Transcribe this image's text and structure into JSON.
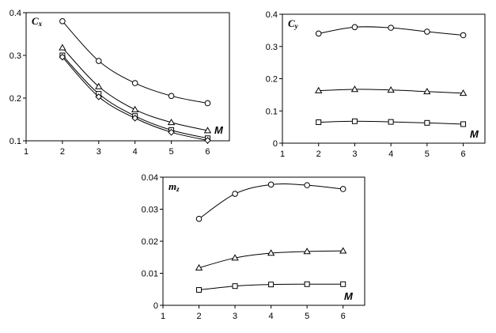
{
  "chart_data": [
    {
      "type": "line",
      "id": "cx",
      "title": "",
      "ylabel": "C_x",
      "xlabel": "M",
      "xlim": [
        1,
        6.6
      ],
      "ylim": [
        0.1,
        0.4
      ],
      "xticks": [
        "1",
        "2",
        "3",
        "4",
        "5",
        "6"
      ],
      "yticks": [
        "0.1",
        "0.2",
        "0.3",
        "0.4"
      ],
      "series": [
        {
          "marker": "circle",
          "x": [
            2,
            3,
            4,
            5,
            6
          ],
          "y": [
            0.38,
            0.287,
            0.235,
            0.205,
            0.188
          ]
        },
        {
          "marker": "triangle",
          "x": [
            2,
            3,
            4,
            5,
            6
          ],
          "y": [
            0.318,
            0.227,
            0.173,
            0.143,
            0.124
          ]
        },
        {
          "marker": "square",
          "x": [
            2,
            3,
            4,
            5,
            6
          ],
          "y": [
            0.3,
            0.21,
            0.158,
            0.125,
            0.106
          ]
        },
        {
          "marker": "diamond",
          "x": [
            2,
            3,
            4,
            5,
            6
          ],
          "y": [
            0.296,
            0.203,
            0.153,
            0.12,
            0.101
          ]
        }
      ]
    },
    {
      "type": "line",
      "id": "cy",
      "title": "",
      "ylabel": "C_y",
      "xlabel": "M",
      "xlim": [
        1,
        6.6
      ],
      "ylim": [
        0,
        0.4
      ],
      "xticks": [
        "1",
        "2",
        "3",
        "4",
        "5",
        "6"
      ],
      "yticks": [
        "0",
        "0.1",
        "0.2",
        "0.3",
        "0.4"
      ],
      "series": [
        {
          "marker": "circle",
          "x": [
            2,
            3,
            4,
            5,
            6
          ],
          "y": [
            0.34,
            0.36,
            0.358,
            0.346,
            0.335
          ]
        },
        {
          "marker": "triangle",
          "x": [
            2,
            3,
            4,
            5,
            6
          ],
          "y": [
            0.163,
            0.167,
            0.165,
            0.16,
            0.155
          ]
        },
        {
          "marker": "square",
          "x": [
            2,
            3,
            4,
            5,
            6
          ],
          "y": [
            0.065,
            0.068,
            0.066,
            0.063,
            0.059
          ]
        }
      ]
    },
    {
      "type": "line",
      "id": "mz",
      "title": "",
      "ylabel": "m_z",
      "xlabel": "M",
      "xlim": [
        1,
        6.6
      ],
      "ylim": [
        0,
        0.04
      ],
      "xticks": [
        "1",
        "2",
        "3",
        "4",
        "5",
        "6"
      ],
      "yticks": [
        "0",
        "0.01",
        "0.02",
        "0.03",
        "0.04"
      ],
      "series": [
        {
          "marker": "circle",
          "x": [
            2,
            3,
            4,
            5,
            6
          ],
          "y": [
            0.027,
            0.0348,
            0.0377,
            0.0375,
            0.0363
          ]
        },
        {
          "marker": "triangle",
          "x": [
            2,
            3,
            4,
            5,
            6
          ],
          "y": [
            0.0117,
            0.0148,
            0.0163,
            0.0168,
            0.017
          ]
        },
        {
          "marker": "square",
          "x": [
            2,
            3,
            4,
            5,
            6
          ],
          "y": [
            0.0048,
            0.006,
            0.0065,
            0.0066,
            0.0066
          ]
        }
      ]
    }
  ]
}
